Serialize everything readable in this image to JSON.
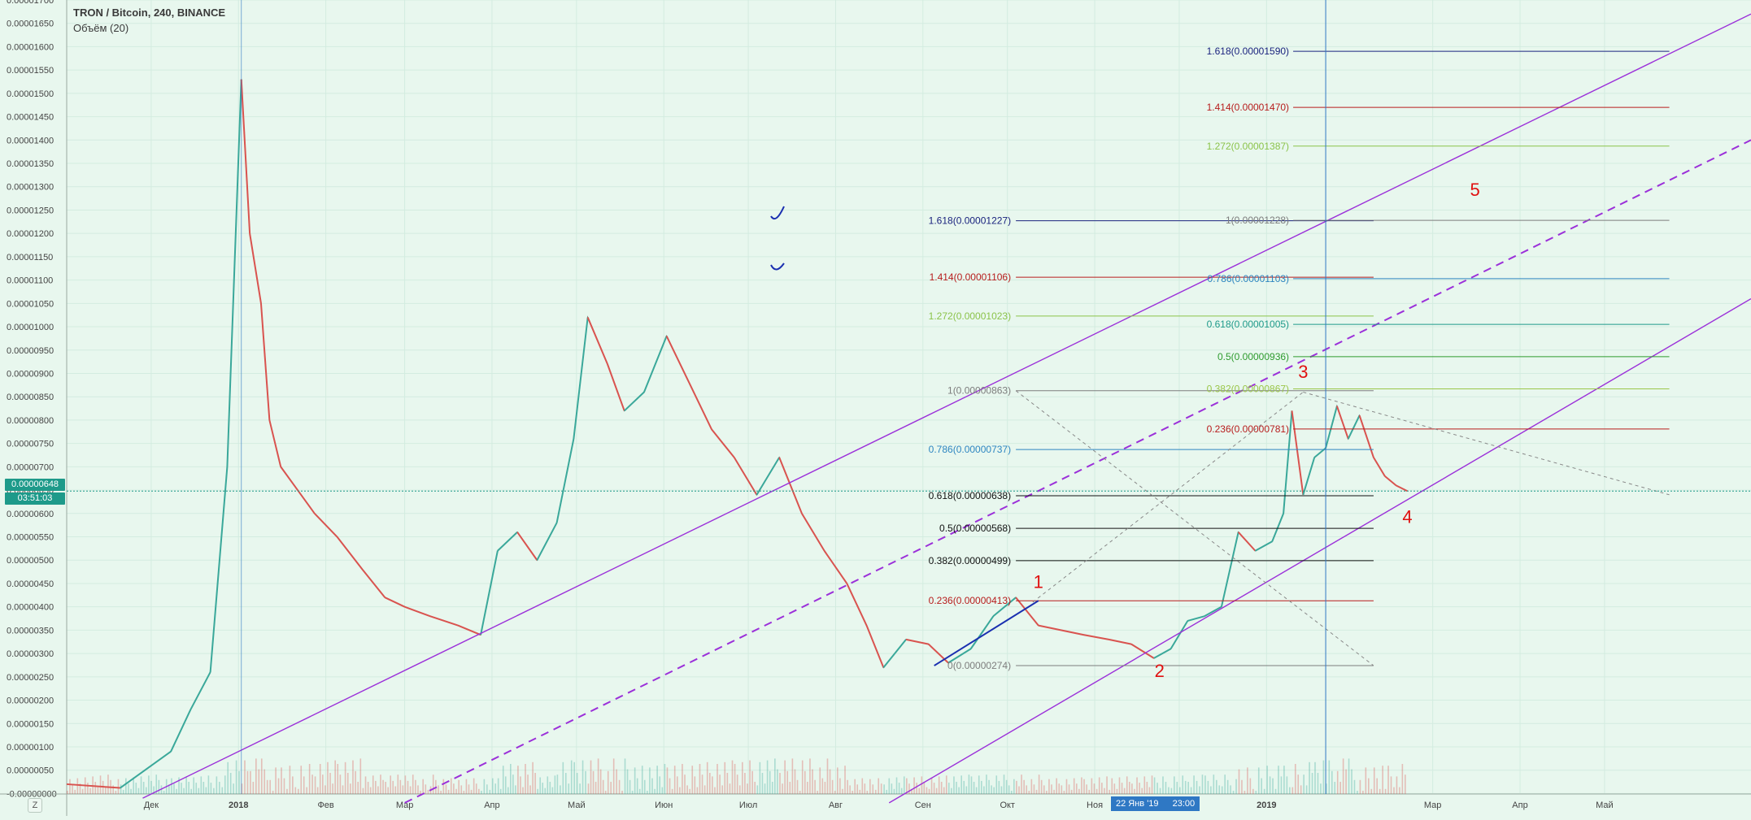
{
  "header": {
    "title": "TRON / Bitcoin, 240, BINANCE",
    "indicator": "Объём (20)"
  },
  "price_tag": {
    "value": "0.00000648",
    "countdown": "03:51:03"
  },
  "cursor_date": {
    "date": "22 Янв '19",
    "time": "23:00"
  },
  "toolbar": {
    "zoom_label": "Z"
  },
  "colors": {
    "background": "#e8f7ee",
    "grid": "#d3ece0",
    "candle_up": "#3aa89a",
    "candle_down": "#d9534f",
    "channel": "#9b30d9",
    "wave_labels": "#e01010",
    "price_line": "#1e9a8a",
    "cursor": "#2f78c4"
  },
  "chart_data": {
    "type": "line",
    "y_axis": {
      "min": -1e-08,
      "max": 1.7e-05,
      "step": 5e-07,
      "labels": [
        "0.00001700",
        "0.00001650",
        "0.00001600",
        "0.00001550",
        "0.00001500",
        "0.00001450",
        "0.00001400",
        "0.00001350",
        "0.00001300",
        "0.00001250",
        "0.00001200",
        "0.00001150",
        "0.00001100",
        "0.00001050",
        "0.00001000",
        "0.00000950",
        "0.00000900",
        "0.00000850",
        "0.00000800",
        "0.00000750",
        "0.00000700",
        "0.00000650",
        "0.00000600",
        "0.00000550",
        "0.00000500",
        "0.00000450",
        "0.00000400",
        "0.00000350",
        "0.00000300",
        "0.00000250",
        "0.00000200",
        "0.00000150",
        "0.00000100",
        "0.00000050",
        "-0.00000000"
      ]
    },
    "x_axis": {
      "start": "2017-11-01",
      "end": "2019-06-22",
      "ticks": [
        {
          "date": "2017-12-01",
          "label": "Дек"
        },
        {
          "date": "2018-01-01",
          "label": "2018"
        },
        {
          "date": "2018-02-01",
          "label": "Фев"
        },
        {
          "date": "2018-03-01",
          "label": "Мар"
        },
        {
          "date": "2018-04-01",
          "label": "Апр"
        },
        {
          "date": "2018-05-01",
          "label": "Май"
        },
        {
          "date": "2018-06-01",
          "label": "Июн"
        },
        {
          "date": "2018-07-01",
          "label": "Июл"
        },
        {
          "date": "2018-08-01",
          "label": "Авг"
        },
        {
          "date": "2018-09-01",
          "label": "Сен"
        },
        {
          "date": "2018-10-01",
          "label": "Окт"
        },
        {
          "date": "2018-11-01",
          "label": "Ноя"
        },
        {
          "date": "2018-12-01",
          "label": "Дек"
        },
        {
          "date": "2019-01-01",
          "label": "2019"
        },
        {
          "date": "2019-03-01",
          "label": "Мар"
        },
        {
          "date": "2019-04-01",
          "label": "Апр"
        },
        {
          "date": "2019-05-01",
          "label": "Май"
        }
      ]
    },
    "price": {
      "x": [
        "2017-11-01",
        "2017-11-20",
        "2017-12-08",
        "2017-12-15",
        "2017-12-22",
        "2017-12-28",
        "2018-01-02",
        "2018-01-05",
        "2018-01-09",
        "2018-01-12",
        "2018-01-16",
        "2018-01-22",
        "2018-01-28",
        "2018-02-05",
        "2018-02-14",
        "2018-02-22",
        "2018-03-01",
        "2018-03-10",
        "2018-03-20",
        "2018-03-28",
        "2018-04-03",
        "2018-04-10",
        "2018-04-17",
        "2018-04-24",
        "2018-04-30",
        "2018-05-05",
        "2018-05-12",
        "2018-05-18",
        "2018-05-25",
        "2018-06-02",
        "2018-06-10",
        "2018-06-18",
        "2018-06-26",
        "2018-07-04",
        "2018-07-12",
        "2018-07-20",
        "2018-07-28",
        "2018-08-05",
        "2018-08-12",
        "2018-08-18",
        "2018-08-26",
        "2018-09-03",
        "2018-09-10",
        "2018-09-18",
        "2018-09-26",
        "2018-10-04",
        "2018-10-12",
        "2018-10-20",
        "2018-10-28",
        "2018-11-06",
        "2018-11-14",
        "2018-11-22",
        "2018-11-28",
        "2018-12-04",
        "2018-12-10",
        "2018-12-16",
        "2018-12-22",
        "2018-12-28",
        "2019-01-03",
        "2019-01-07",
        "2019-01-10",
        "2019-01-14",
        "2019-01-18",
        "2019-01-22",
        "2019-01-26",
        "2019-01-30",
        "2019-02-03",
        "2019-02-08",
        "2019-02-12",
        "2019-02-16",
        "2019-02-20"
      ],
      "y": [
        2e-07,
        1.2e-07,
        9e-07,
        1.8e-06,
        2.6e-06,
        7e-06,
        1.53e-05,
        1.2e-05,
        1.05e-05,
        8e-06,
        7e-06,
        6.5e-06,
        6e-06,
        5.5e-06,
        4.8e-06,
        4.2e-06,
        4e-06,
        3.8e-06,
        3.6e-06,
        3.4e-06,
        5.2e-06,
        5.6e-06,
        5e-06,
        5.8e-06,
        7.6e-06,
        1.02e-05,
        9.2e-06,
        8.2e-06,
        8.6e-06,
        9.8e-06,
        8.8e-06,
        7.8e-06,
        7.2e-06,
        6.4e-06,
        7.2e-06,
        6e-06,
        5.2e-06,
        4.5e-06,
        3.6e-06,
        2.7e-06,
        3.3e-06,
        3.2e-06,
        2.8e-06,
        3.1e-06,
        3.8e-06,
        4.2e-06,
        3.6e-06,
        3.5e-06,
        3.4e-06,
        3.3e-06,
        3.2e-06,
        2.9e-06,
        3.1e-06,
        3.7e-06,
        3.8e-06,
        4e-06,
        5.6e-06,
        5.2e-06,
        5.4e-06,
        6e-06,
        8.2e-06,
        6.4e-06,
        7.2e-06,
        7.4e-06,
        8.3e-06,
        7.6e-06,
        8.1e-06,
        7.2e-06,
        6.8e-06,
        6.6e-06,
        6.48e-06
      ]
    },
    "fib_left": [
      {
        "label": "1.618(0.00001227)",
        "value": 1.227e-05,
        "color": "#1a237e"
      },
      {
        "label": "1.414(0.00001106)",
        "value": 1.106e-05,
        "color": "#b71c1c"
      },
      {
        "label": "1.272(0.00001023)",
        "value": 1.023e-05,
        "color": "#8bc34a"
      },
      {
        "label": "1(0.00000863)",
        "value": 8.63e-06,
        "color": "#7d7d7d"
      },
      {
        "label": "0.786(0.00000737)",
        "value": 7.37e-06,
        "color": "#2e86c1"
      },
      {
        "label": "0.618(0.00000638)",
        "value": 6.38e-06,
        "color": "#111111"
      },
      {
        "label": "0.5(0.00000568)",
        "value": 5.68e-06,
        "color": "#111111"
      },
      {
        "label": "0.382(0.00000499)",
        "value": 4.99e-06,
        "color": "#111111"
      },
      {
        "label": "0.236(0.00000413)",
        "value": 4.13e-06,
        "color": "#b71c1c"
      },
      {
        "label": "0(0.00000274)",
        "value": 2.74e-06,
        "color": "#7d7d7d"
      }
    ],
    "fib_right": [
      {
        "label": "1.618(0.00001590)",
        "value": 1.59e-05,
        "color": "#1a237e"
      },
      {
        "label": "1.414(0.00001470)",
        "value": 1.47e-05,
        "color": "#b71c1c"
      },
      {
        "label": "1.272(0.00001387)",
        "value": 1.387e-05,
        "color": "#8bc34a"
      },
      {
        "label": "1(0.00001228)",
        "value": 1.228e-05,
        "color": "#7d7d7d"
      },
      {
        "label": "0.786(0.00001103)",
        "value": 1.103e-05,
        "color": "#2e86c1"
      },
      {
        "label": "0.618(0.00001005)",
        "value": 1.005e-05,
        "color": "#1e9a8a"
      },
      {
        "label": "0.5(0.00000936)",
        "value": 9.36e-06,
        "color": "#2e9b2e"
      },
      {
        "label": "0.382(0.00000867)",
        "value": 8.67e-06,
        "color": "#9bc64a"
      },
      {
        "label": "0.236(0.00000781)",
        "value": 7.81e-06,
        "color": "#b71c1c"
      }
    ],
    "wave_labels": [
      {
        "label": "1",
        "x": "2018-10-12",
        "y": 4.4e-06
      },
      {
        "label": "2",
        "x": "2018-11-24",
        "y": 2.5e-06
      },
      {
        "label": "3",
        "x": "2019-01-14",
        "y": 8.9e-06
      },
      {
        "label": "4",
        "x": "2019-02-20",
        "y": 5.8e-06
      },
      {
        "label": "5",
        "x": "2019-03-16",
        "y": 1.28e-05
      }
    ],
    "channel_lines": [
      {
        "x": [
          "2017-11-28",
          "2019-06-22"
        ],
        "y": [
          -1e-07,
          1.67e-05
        ],
        "style": "solid"
      },
      {
        "x": [
          "2018-03-01",
          "2019-06-22"
        ],
        "y": [
          -2e-07,
          1.4e-05
        ],
        "style": "dashed"
      },
      {
        "x": [
          "2018-08-20",
          "2019-06-22"
        ],
        "y": [
          -2e-07,
          1.06e-05
        ],
        "style": "solid"
      }
    ],
    "wave1_arrow": {
      "x": [
        "2018-09-05",
        "2018-10-12"
      ],
      "y": [
        2.74e-06,
        4.13e-06
      ]
    },
    "current_price": 6.48e-06,
    "cursor_x": "2019-01-22"
  }
}
